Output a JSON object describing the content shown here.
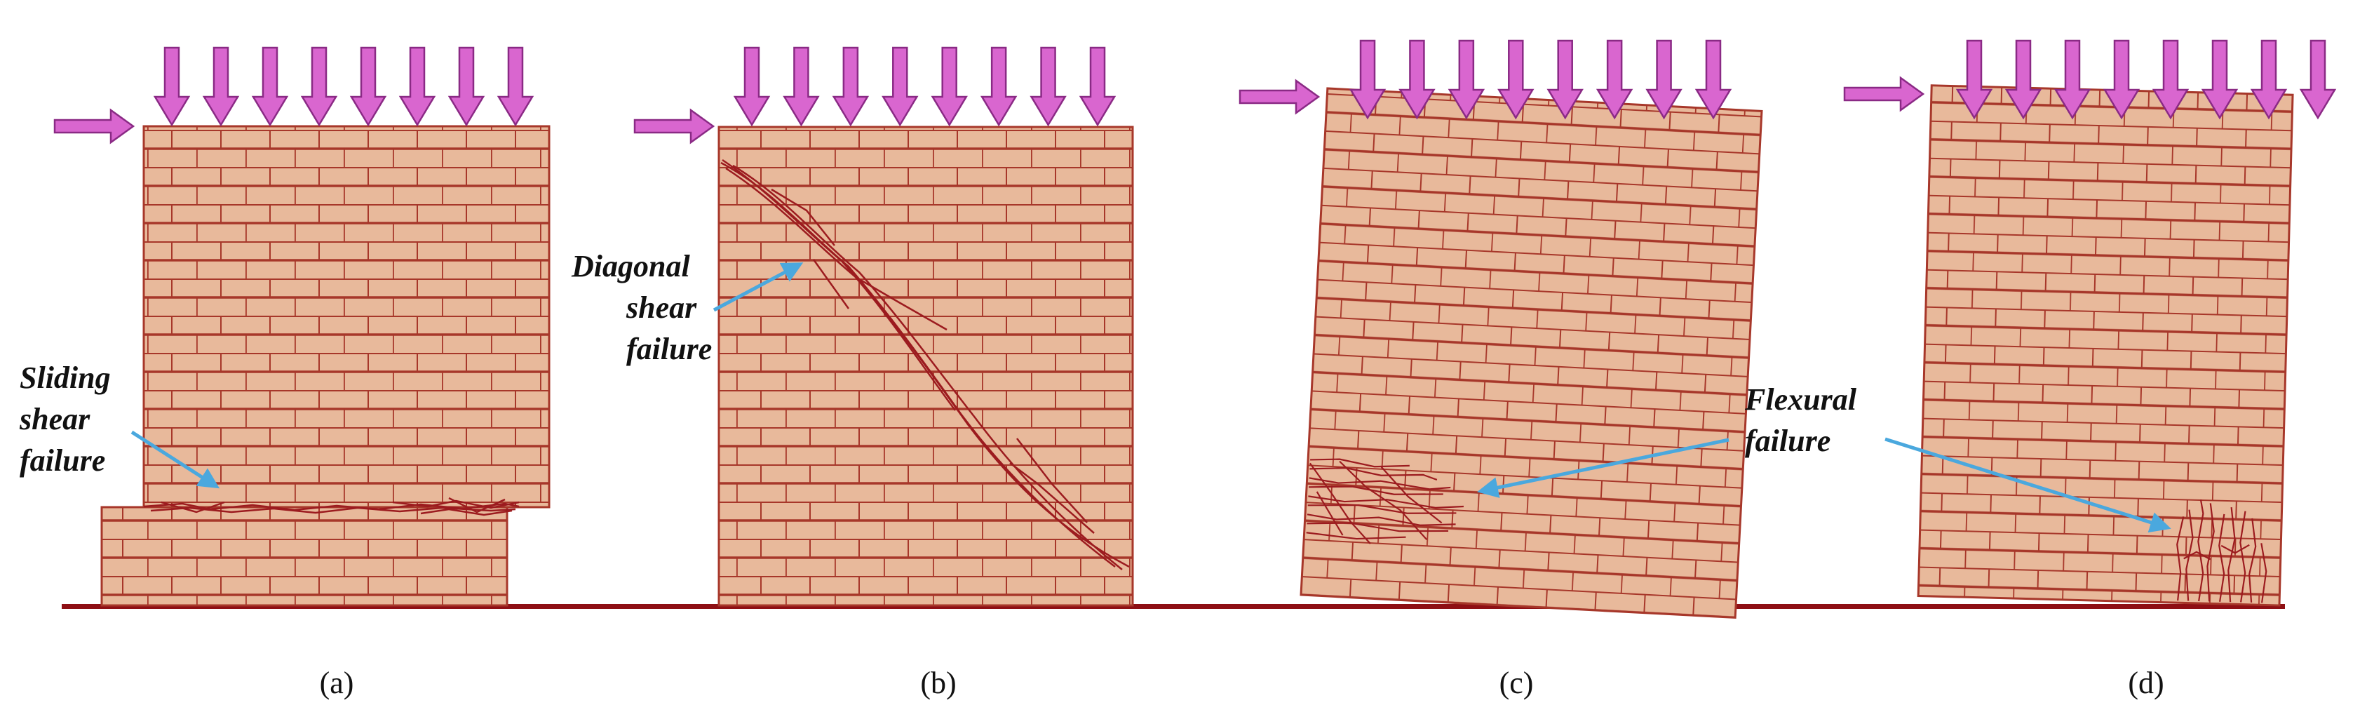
{
  "colors": {
    "brick": "#e8b99b",
    "mortar": "#a7372a",
    "crack": "#9c1b1f",
    "ground": "#8e0f14",
    "load_arrow_fill": "#d966cf",
    "load_arrow_stroke": "#8a2a85",
    "pointer_arrow": "#4aa8de"
  },
  "icons": {
    "load": "down-arrow-icon",
    "lateral": "right-arrow-icon",
    "pointer": "pointer-arrow-icon"
  },
  "panels": [
    {
      "caption": "(a)",
      "annotation": [
        "Sliding",
        "shear",
        "failure"
      ]
    },
    {
      "caption": "(b)",
      "annotation": [
        "Diagonal",
        "shear",
        "failure"
      ]
    },
    {
      "caption": "(c)",
      "annotation": []
    },
    {
      "caption": "(d)",
      "annotation": []
    }
  ],
  "shared_annotation": [
    "Flexural",
    "failure"
  ]
}
